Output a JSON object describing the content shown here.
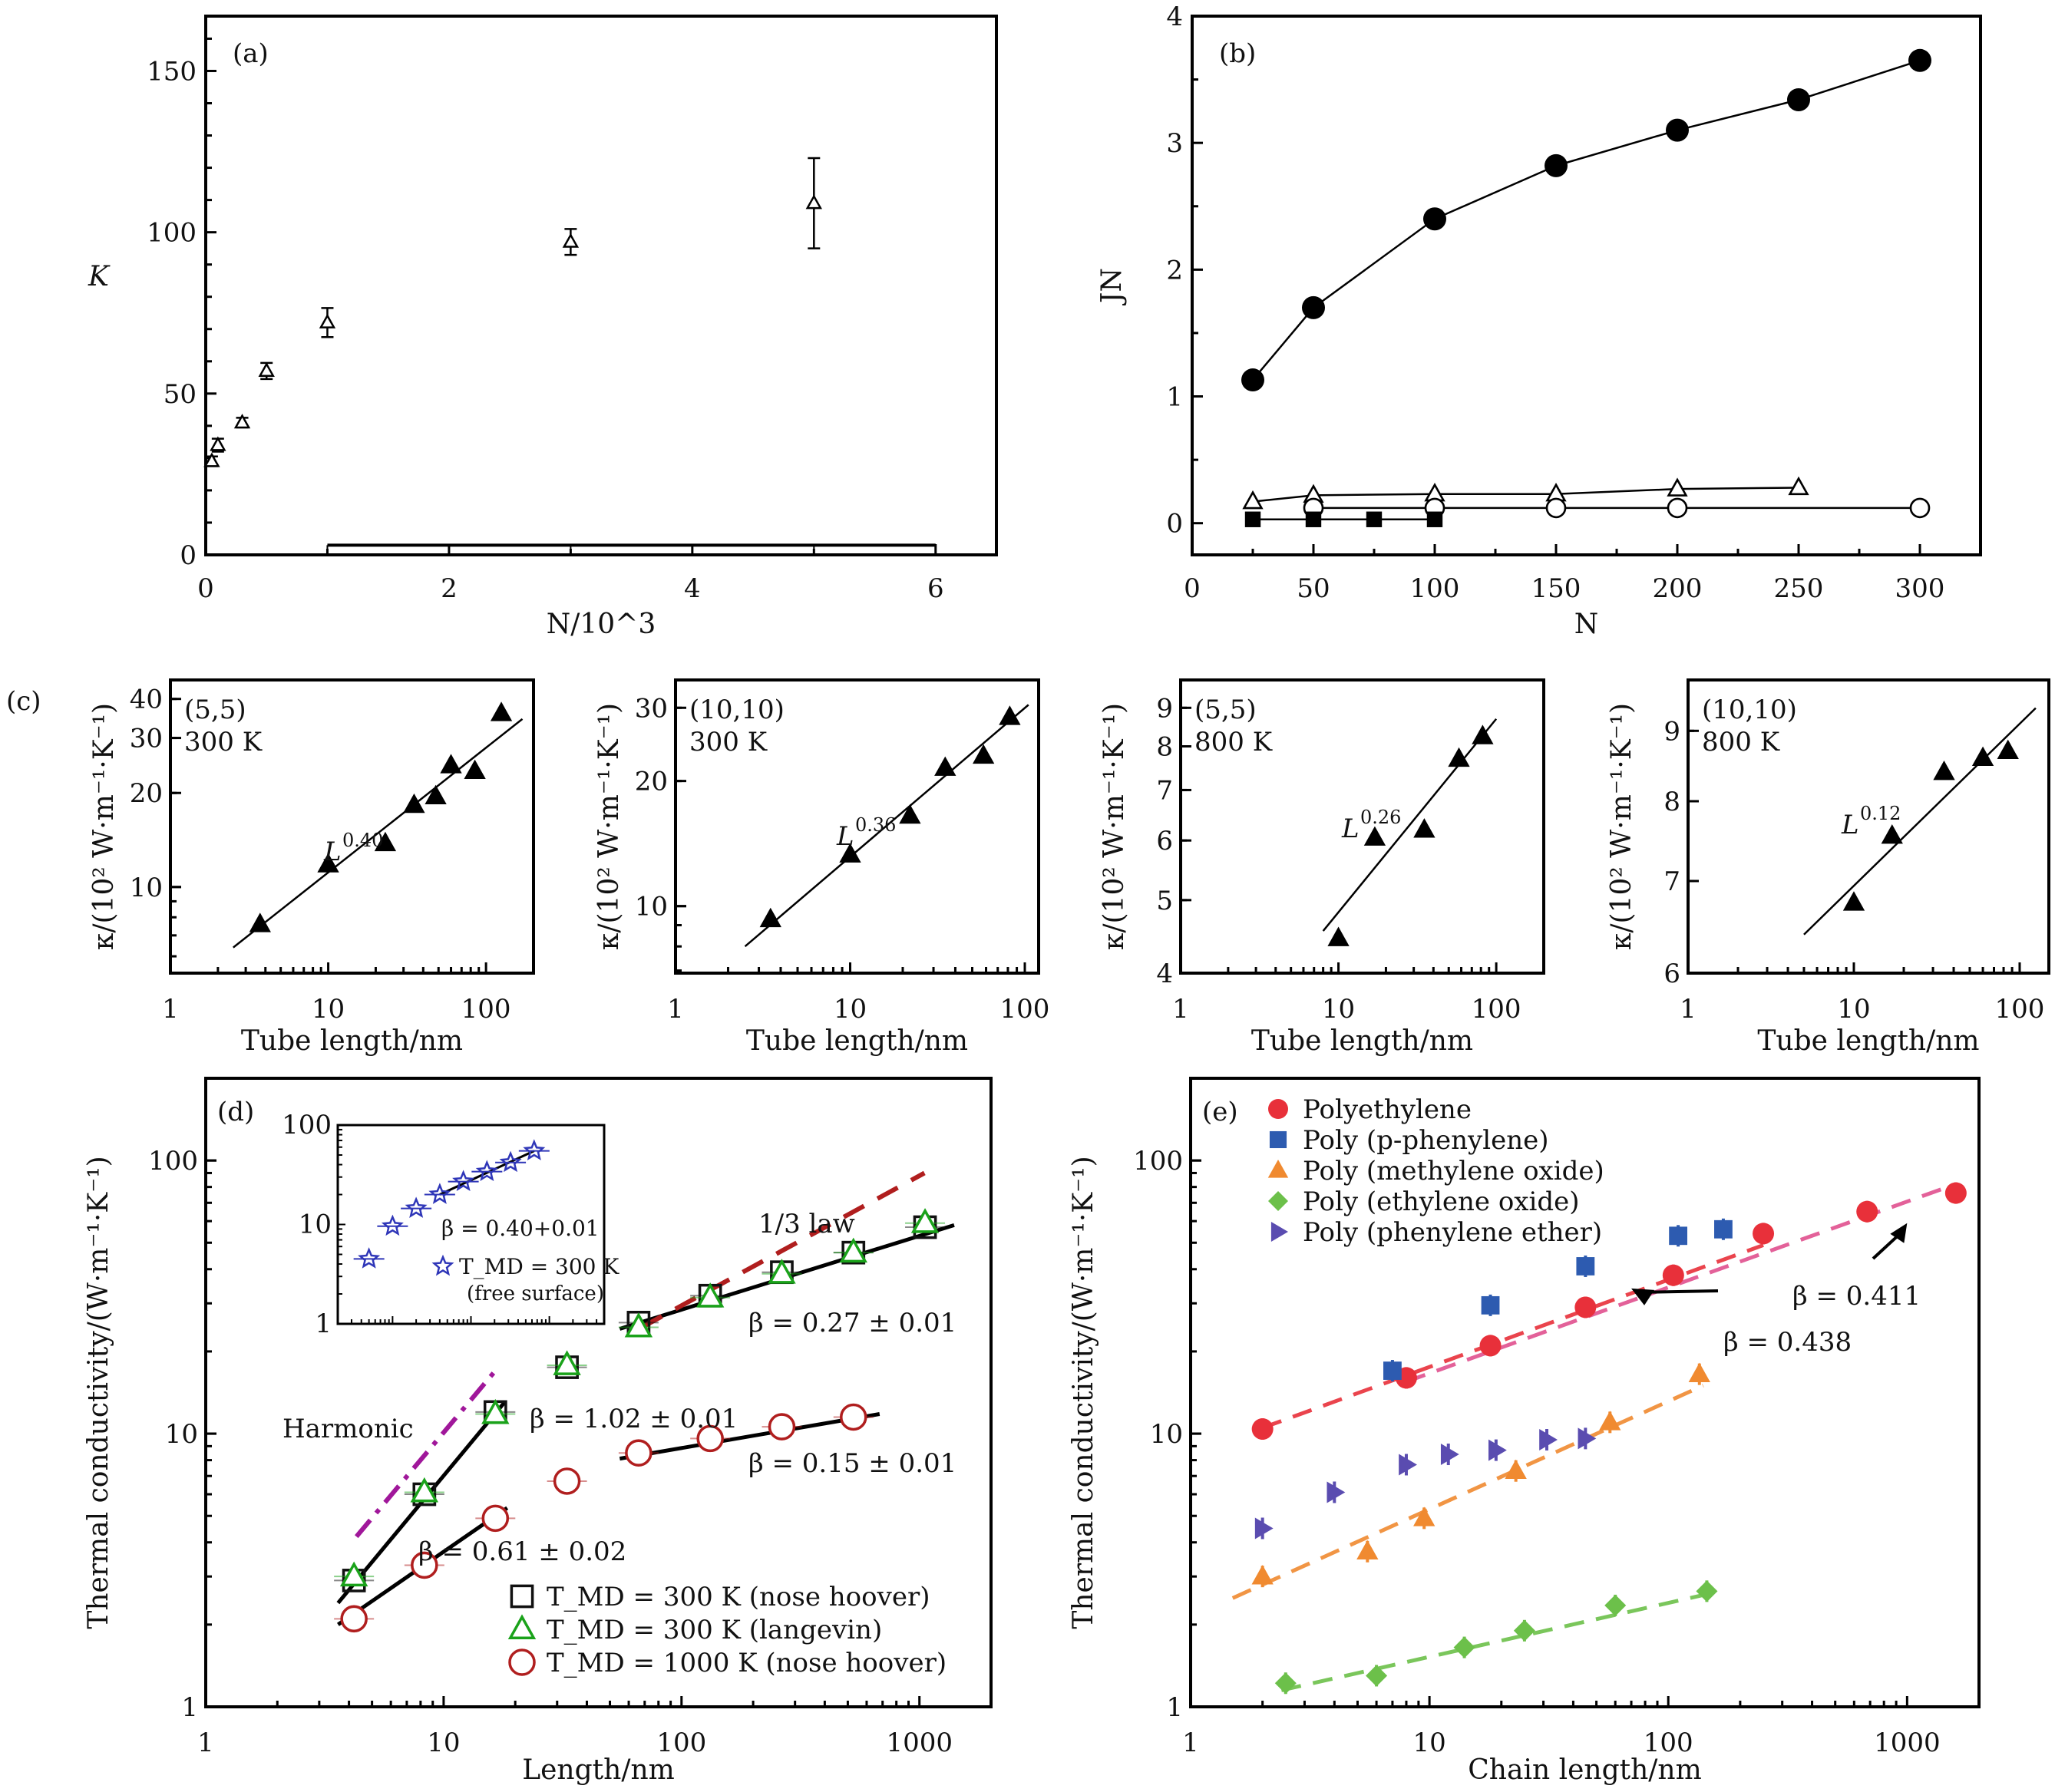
{
  "chart_data": [
    {
      "id": "a",
      "type": "scatter",
      "panel_label": "(a)",
      "xlabel": "N/10^3",
      "ylabel": "K",
      "xlim": [
        0,
        6.5
      ],
      "ylim": [
        0,
        167
      ],
      "xticks": [
        0,
        2,
        4,
        6
      ],
      "yticks": [
        0,
        50,
        100,
        150
      ],
      "marker": "open-triangle",
      "points": [
        {
          "x": 0.05,
          "y": 29,
          "err": 1.5
        },
        {
          "x": 0.1,
          "y": 34,
          "err": 2
        },
        {
          "x": 0.3,
          "y": 41,
          "err": 1.5
        },
        {
          "x": 0.5,
          "y": 57,
          "err": 2.5
        },
        {
          "x": 1.0,
          "y": 72,
          "err": 4.5
        },
        {
          "x": 3.0,
          "y": 97,
          "err": 4
        },
        {
          "x": 5.0,
          "y": 109,
          "err": 14
        }
      ],
      "baseline_bar": {
        "x_from": 1,
        "x_to": 6,
        "y": 3,
        "ticks": [
          1,
          2,
          3,
          4,
          5,
          6
        ]
      }
    },
    {
      "id": "b",
      "type": "line",
      "panel_label": "(b)",
      "xlabel": "N",
      "ylabel": "JN",
      "xlim": [
        0,
        325
      ],
      "ylim": [
        -0.25,
        4
      ],
      "xticks": [
        0,
        50,
        100,
        150,
        200,
        250,
        300
      ],
      "yticks": [
        0,
        1,
        2,
        3,
        4
      ],
      "series": [
        {
          "name": "filled-circle",
          "marker": "filled-circle",
          "x": [
            25,
            50,
            100,
            150,
            200,
            250,
            300
          ],
          "y": [
            1.13,
            1.7,
            2.4,
            2.82,
            3.1,
            3.34,
            3.65
          ]
        },
        {
          "name": "open-triangle",
          "marker": "open-triangle",
          "x": [
            25,
            50,
            100,
            150,
            200,
            250
          ],
          "y": [
            0.17,
            0.22,
            0.23,
            0.23,
            0.27,
            0.28
          ]
        },
        {
          "name": "open-circle",
          "marker": "open-circle",
          "x": [
            50,
            100,
            150,
            200,
            300
          ],
          "y": [
            0.12,
            0.12,
            0.12,
            0.12,
            0.12
          ]
        },
        {
          "name": "filled-square",
          "marker": "filled-square",
          "x": [
            25,
            50,
            75,
            100
          ],
          "y": [
            0.03,
            0.03,
            0.03,
            0.03
          ]
        }
      ]
    },
    {
      "id": "c1",
      "type": "scatter",
      "panel_label": "(c)",
      "inset_text": [
        "(5,5)",
        "300 K"
      ],
      "fit_label": "L",
      "fit_exponent": "0.40",
      "xlabel": "Tube length/nm",
      "ylabel": "κ/(10² W·m⁻¹·K⁻¹)",
      "xscale": "log",
      "yscale": "log",
      "xlim": [
        1,
        200
      ],
      "ylim": [
        5.3,
        46
      ],
      "xticks": [
        1,
        10,
        100
      ],
      "yticks": [
        10,
        20,
        30,
        40
      ],
      "points": [
        {
          "x": 3.7,
          "y": 7.6
        },
        {
          "x": 10,
          "y": 11.8
        },
        {
          "x": 23,
          "y": 13.8
        },
        {
          "x": 35,
          "y": 18.3
        },
        {
          "x": 48,
          "y": 19.5
        },
        {
          "x": 60,
          "y": 24.5
        },
        {
          "x": 85,
          "y": 23.5
        },
        {
          "x": 125,
          "y": 36
        }
      ],
      "fit": {
        "x": [
          2.5,
          170
        ],
        "y": [
          6.4,
          34.5
        ]
      }
    },
    {
      "id": "c2",
      "type": "scatter",
      "inset_text": [
        "(10,10)",
        "300 K"
      ],
      "fit_label": "L",
      "fit_exponent": "0.36",
      "xlabel": "Tube length/nm",
      "ylabel": "κ/(10² W·m⁻¹·K⁻¹)",
      "xscale": "log",
      "yscale": "log",
      "xlim": [
        1,
        120
      ],
      "ylim": [
        6.9,
        35
      ],
      "xticks": [
        1,
        10,
        100
      ],
      "yticks": [
        10,
        20,
        30
      ],
      "points": [
        {
          "x": 3.5,
          "y": 9.3
        },
        {
          "x": 10,
          "y": 13.3
        },
        {
          "x": 22,
          "y": 16.5
        },
        {
          "x": 35,
          "y": 21.5
        },
        {
          "x": 58,
          "y": 23
        },
        {
          "x": 82,
          "y": 28.5
        }
      ],
      "fit": {
        "x": [
          2.5,
          105
        ],
        "y": [
          8.0,
          30.5
        ]
      }
    },
    {
      "id": "c3",
      "type": "scatter",
      "inset_text": [
        "(5,5)",
        "800 K"
      ],
      "fit_label": "L",
      "fit_exponent": "0.26",
      "xlabel": "Tube length/nm",
      "ylabel": "κ/(10² W·m⁻¹·K⁻¹)",
      "xscale": "log",
      "yscale": "log",
      "xlim": [
        1,
        200
      ],
      "ylim": [
        4,
        9.8
      ],
      "xticks": [
        1,
        10,
        100
      ],
      "yticks": [
        4,
        5,
        6,
        7,
        8,
        9
      ],
      "points": [
        {
          "x": 10,
          "y": 4.45
        },
        {
          "x": 17,
          "y": 6.05
        },
        {
          "x": 35,
          "y": 6.2
        },
        {
          "x": 58,
          "y": 7.7
        },
        {
          "x": 82,
          "y": 8.25
        }
      ],
      "fit": {
        "x": [
          8,
          100
        ],
        "y": [
          4.55,
          8.7
        ]
      }
    },
    {
      "id": "c4",
      "type": "scatter",
      "inset_text": [
        "(10,10)",
        "800 K"
      ],
      "fit_label": "L",
      "fit_exponent": "0.12",
      "xlabel": "Tube length/nm",
      "ylabel": "κ/(10² W·m⁻¹·K⁻¹)",
      "xscale": "log",
      "yscale": "log",
      "xlim": [
        1,
        150
      ],
      "ylim": [
        6,
        9.8
      ],
      "xticks": [
        1,
        10,
        100
      ],
      "yticks": [
        6,
        7,
        8,
        9
      ],
      "points": [
        {
          "x": 10,
          "y": 6.75
        },
        {
          "x": 17,
          "y": 7.55
        },
        {
          "x": 35,
          "y": 8.4
        },
        {
          "x": 60,
          "y": 8.6
        },
        {
          "x": 85,
          "y": 8.7
        }
      ],
      "fit": {
        "x": [
          5,
          125
        ],
        "y": [
          6.4,
          9.35
        ]
      }
    },
    {
      "id": "d",
      "type": "scatter",
      "panel_label": "(d)",
      "xlabel": "Length/nm",
      "ylabel": "Thermal conductivity/(W·m⁻¹·K⁻¹)",
      "xscale": "log",
      "yscale": "log",
      "xlim": [
        1,
        2000
      ],
      "ylim": [
        1,
        200
      ],
      "xticks": [
        1,
        10,
        100,
        1000
      ],
      "yticks": [
        1,
        10,
        100
      ],
      "series": [
        {
          "name": "T_MD = 300 K (nose hoover)",
          "marker": "open-square",
          "color": "#111111",
          "x": [
            4.2,
            8.3,
            16.5,
            33,
            66,
            132,
            264,
            528,
            1056
          ],
          "y": [
            2.9,
            6.0,
            12.0,
            17.5,
            25.5,
            32,
            39,
            46,
            57
          ]
        },
        {
          "name": "T_MD = 300 K (langevin)",
          "marker": "open-triangle",
          "color": "#1aa21a",
          "x": [
            4.2,
            8.3,
            16.5,
            33,
            66,
            132,
            264,
            528,
            1056
          ],
          "y": [
            3.0,
            6.1,
            11.8,
            17.8,
            24.5,
            31.5,
            38.5,
            46,
            59
          ]
        },
        {
          "name": "T_MD = 1000 K (nose hoover)",
          "marker": "open-circle",
          "color": "#b01e1e",
          "x": [
            4.2,
            8.3,
            16.5,
            33,
            66,
            132,
            264,
            528
          ],
          "y": [
            2.1,
            3.3,
            4.9,
            6.7,
            8.5,
            9.6,
            10.6,
            11.5
          ]
        }
      ],
      "fits": [
        {
          "label": "β = 0.27 ± 0.01",
          "x": [
            55,
            1400
          ],
          "y": [
            24.2,
            58
          ],
          "style": "solid"
        },
        {
          "label": "β = 1.02 ± 0.01",
          "x": [
            3.6,
            18
          ],
          "y": [
            2.4,
            13
          ],
          "style": "solid"
        },
        {
          "label": "β = 0.61 ± 0.02",
          "x": [
            3.6,
            18.5
          ],
          "y": [
            2.0,
            5.35
          ],
          "style": "solid"
        },
        {
          "label": "β = 0.15 ± 0.01",
          "x": [
            55,
            680
          ],
          "y": [
            8.1,
            11.8
          ],
          "style": "solid"
        },
        {
          "label": "1/3 law",
          "x": [
            68,
            1050
          ],
          "y": [
            24.5,
            90
          ],
          "style": "dashed",
          "color": "#b01e1e"
        },
        {
          "label": "Harmonic",
          "x": [
            4.3,
            16.5
          ],
          "y": [
            4.2,
            17
          ],
          "style": "dashdot",
          "color": "#a0179a"
        }
      ],
      "inset": {
        "xscale": "log",
        "yscale": "log",
        "xlim": [
          0.2,
          500
        ],
        "ylim": [
          1,
          100
        ],
        "yticks": [
          1,
          10,
          100
        ],
        "marker": "open-star",
        "color": "#2f36b8",
        "points": [
          {
            "x": 0.5,
            "y": 4.5
          },
          {
            "x": 1.0,
            "y": 9.6
          },
          {
            "x": 2.0,
            "y": 14.5
          },
          {
            "x": 4.0,
            "y": 20
          },
          {
            "x": 8.0,
            "y": 27
          },
          {
            "x": 16,
            "y": 34
          },
          {
            "x": 32,
            "y": 42
          },
          {
            "x": 64,
            "y": 55
          }
        ],
        "fit": {
          "x": [
            4,
            64
          ],
          "y": [
            20,
            55
          ]
        },
        "fit_label": "β = 0.40+0.01",
        "legend_line1": "T_MD = 300 K",
        "legend_line2": "(free surface)"
      }
    },
    {
      "id": "e",
      "type": "scatter",
      "panel_label": "(e)",
      "xlabel": "Chain length/nm",
      "ylabel": "Thermal conductivity/(W·m⁻¹·K⁻¹)",
      "xscale": "log",
      "yscale": "log",
      "xlim": [
        1,
        2000
      ],
      "ylim": [
        1,
        200
      ],
      "xticks": [
        1,
        10,
        100,
        1000
      ],
      "yticks": [
        1,
        10,
        100
      ],
      "legend_position": "top-left",
      "series": [
        {
          "name": "Polyethylene",
          "marker": "filled-circle",
          "color": "#e8303a",
          "x": [
            2,
            8,
            18,
            45,
            105,
            250,
            680,
            1600
          ],
          "y": [
            10.4,
            16,
            21,
            29,
            38,
            54,
            65,
            76
          ]
        },
        {
          "name": "Poly (p-phenylene)",
          "marker": "filled-square",
          "color": "#2d5bb0",
          "x": [
            7,
            18,
            45,
            110,
            170
          ],
          "y": [
            17,
            29.5,
            41,
            53,
            56
          ]
        },
        {
          "name": "Poly (methylene oxide)",
          "marker": "filled-triangle",
          "color": "#f08a30",
          "x": [
            2,
            5.5,
            9.5,
            23,
            57,
            135
          ],
          "y": [
            3.0,
            3.7,
            4.9,
            7.3,
            11,
            16.5
          ]
        },
        {
          "name": "Poly (ethylene oxide)",
          "marker": "filled-diamond",
          "color": "#6cc04a",
          "x": [
            2.5,
            6,
            14,
            25,
            60,
            145
          ],
          "y": [
            1.22,
            1.3,
            1.65,
            1.9,
            2.35,
            2.65
          ]
        },
        {
          "name": "Poly (phenylene ether)",
          "marker": "filled-right-triangle",
          "color": "#5a4cb0",
          "x": [
            2,
            4,
            8,
            12,
            19,
            31,
            45
          ],
          "y": [
            4.5,
            6.1,
            7.7,
            8.4,
            8.7,
            9.5,
            9.6
          ]
        }
      ],
      "fits": [
        {
          "label": "β = 0.438",
          "x": [
            2,
            250
          ],
          "y": [
            10.5,
            49
          ],
          "color": "#e8303a",
          "style": "dashed"
        },
        {
          "label": "β = 0.411",
          "x": [
            8,
            1600
          ],
          "y": [
            15.5,
            82
          ],
          "color": "#e0508f",
          "style": "dashed"
        },
        {
          "label": "",
          "x": [
            1.5,
            140
          ],
          "y": [
            2.5,
            15
          ],
          "color": "#f08a30",
          "style": "dashed"
        },
        {
          "label": "",
          "x": [
            2.4,
            150
          ],
          "y": [
            1.15,
            2.6
          ],
          "color": "#6cc04a",
          "style": "dashed"
        }
      ],
      "annotations": [
        {
          "text": "β = 0.438",
          "arrow_to": [
            70,
            34
          ]
        },
        {
          "text": "β = 0.411",
          "arrow_to": [
            1000,
            59
          ]
        }
      ]
    }
  ]
}
